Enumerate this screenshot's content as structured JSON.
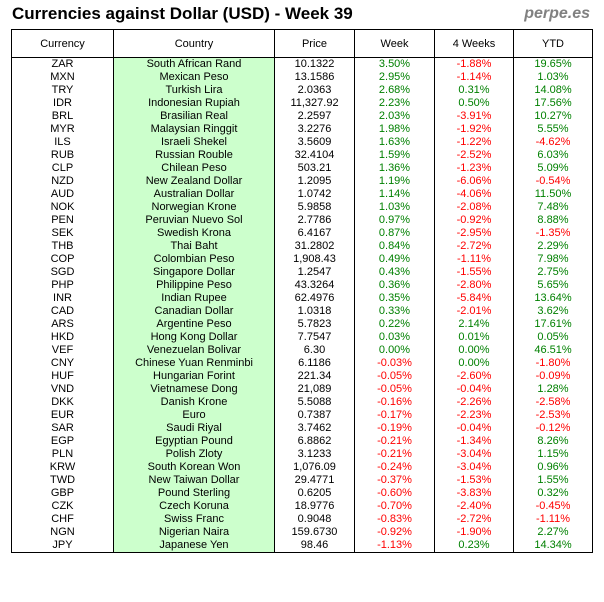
{
  "header": {
    "title": "Currencies against Dollar (USD) - Week 39",
    "brand": "perpe.es"
  },
  "columns": [
    "Currency",
    "Country",
    "Price",
    "Week",
    "4 Weeks",
    "YTD"
  ],
  "colors": {
    "positive": "#008000",
    "negative": "#ff0000",
    "country_bg": "#ccffcc"
  },
  "rows": [
    [
      "ZAR",
      "South African Rand",
      "10.1322",
      "3.50%",
      "-1.88%",
      "19.65%"
    ],
    [
      "MXN",
      "Mexican Peso",
      "13.1586",
      "2.95%",
      "-1.14%",
      "1.03%"
    ],
    [
      "TRY",
      "Turkish Lira",
      "2.0363",
      "2.68%",
      "0.31%",
      "14.08%"
    ],
    [
      "IDR",
      "Indonesian Rupiah",
      "11,327.92",
      "2.23%",
      "0.50%",
      "17.56%"
    ],
    [
      "BRL",
      "Brasilian Real",
      "2.2597",
      "2.03%",
      "-3.91%",
      "10.27%"
    ],
    [
      "MYR",
      "Malaysian Ringgit",
      "3.2276",
      "1.98%",
      "-1.92%",
      "5.55%"
    ],
    [
      "ILS",
      "Israeli Shekel",
      "3.5609",
      "1.63%",
      "-1.22%",
      "-4.62%"
    ],
    [
      "RUB",
      "Russian Rouble",
      "32.4104",
      "1.59%",
      "-2.52%",
      "6.03%"
    ],
    [
      "CLP",
      "Chilean Peso",
      "503.21",
      "1.36%",
      "-1.23%",
      "5.09%"
    ],
    [
      "NZD",
      "New Zealand Dollar",
      "1.2095",
      "1.19%",
      "-6.06%",
      "-0.54%"
    ],
    [
      "AUD",
      "Australian Dollar",
      "1.0742",
      "1.14%",
      "-4.06%",
      "11.50%"
    ],
    [
      "NOK",
      "Norwegian Krone",
      "5.9858",
      "1.03%",
      "-2.08%",
      "7.48%"
    ],
    [
      "PEN",
      "Peruvian Nuevo Sol",
      "2.7786",
      "0.97%",
      "-0.92%",
      "8.88%"
    ],
    [
      "SEK",
      "Swedish Krona",
      "6.4167",
      "0.87%",
      "-2.95%",
      "-1.35%"
    ],
    [
      "THB",
      "Thai Baht",
      "31.2802",
      "0.84%",
      "-2.72%",
      "2.29%"
    ],
    [
      "COP",
      "Colombian Peso",
      "1,908.43",
      "0.49%",
      "-1.11%",
      "7.98%"
    ],
    [
      "SGD",
      "Singapore Dollar",
      "1.2547",
      "0.43%",
      "-1.55%",
      "2.75%"
    ],
    [
      "PHP",
      "Philippine Peso",
      "43.3264",
      "0.36%",
      "-2.80%",
      "5.65%"
    ],
    [
      "INR",
      "Indian Rupee",
      "62.4976",
      "0.35%",
      "-5.84%",
      "13.64%"
    ],
    [
      "CAD",
      "Canadian Dollar",
      "1.0318",
      "0.33%",
      "-2.01%",
      "3.62%"
    ],
    [
      "ARS",
      "Argentine Peso",
      "5.7823",
      "0.22%",
      "2.14%",
      "17.61%"
    ],
    [
      "HKD",
      "Hong Kong Dollar",
      "7.7547",
      "0.03%",
      "0.01%",
      "0.05%"
    ],
    [
      "VEF",
      "Venezuelan Bolivar",
      "6.30",
      "0.00%",
      "0.00%",
      "46.51%"
    ],
    [
      "CNY",
      "Chinese Yuan Renminbi",
      "6.1186",
      "-0.03%",
      "0.00%",
      "-1.80%"
    ],
    [
      "HUF",
      "Hungarian Forint",
      "221.34",
      "-0.05%",
      "-2.60%",
      "-0.09%"
    ],
    [
      "VND",
      "Vietnamese Dong",
      "21,089",
      "-0.05%",
      "-0.04%",
      "1.28%"
    ],
    [
      "DKK",
      "Danish Krone",
      "5.5088",
      "-0.16%",
      "-2.26%",
      "-2.58%"
    ],
    [
      "EUR",
      "Euro",
      "0.7387",
      "-0.17%",
      "-2.23%",
      "-2.53%"
    ],
    [
      "SAR",
      "Saudi Riyal",
      "3.7462",
      "-0.19%",
      "-0.04%",
      "-0.12%"
    ],
    [
      "EGP",
      "Egyptian Pound",
      "6.8862",
      "-0.21%",
      "-1.34%",
      "8.26%"
    ],
    [
      "PLN",
      "Polish Zloty",
      "3.1233",
      "-0.21%",
      "-3.04%",
      "1.15%"
    ],
    [
      "KRW",
      "South Korean Won",
      "1,076.09",
      "-0.24%",
      "-3.04%",
      "0.96%"
    ],
    [
      "TWD",
      "New Taiwan Dollar",
      "29.4771",
      "-0.37%",
      "-1.53%",
      "1.55%"
    ],
    [
      "GBP",
      "Pound Sterling",
      "0.6205",
      "-0.60%",
      "-3.83%",
      "0.32%"
    ],
    [
      "CZK",
      "Czech Koruna",
      "18.9776",
      "-0.70%",
      "-2.40%",
      "-0.45%"
    ],
    [
      "CHF",
      "Swiss Franc",
      "0.9048",
      "-0.83%",
      "-2.72%",
      "-1.11%"
    ],
    [
      "NGN",
      "Nigerian Naira",
      "159.6730",
      "-0.92%",
      "-1.90%",
      "2.27%"
    ],
    [
      "JPY",
      "Japanese Yen",
      "98.46",
      "-1.13%",
      "0.23%",
      "14.34%"
    ]
  ]
}
